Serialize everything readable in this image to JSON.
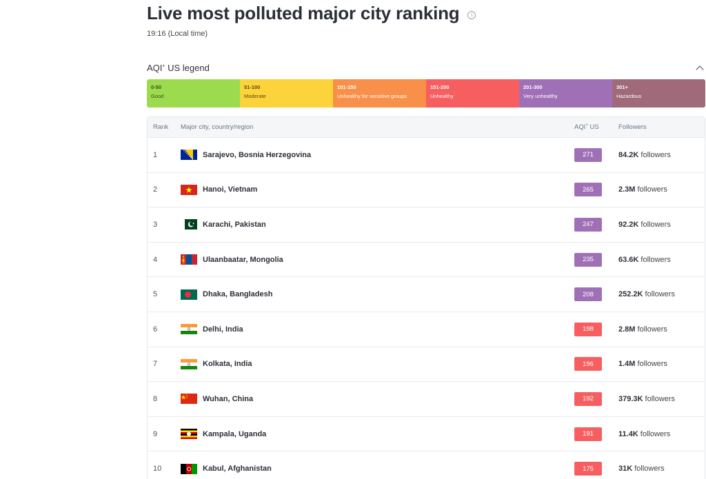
{
  "header": {
    "title": "Live most polluted major city ranking",
    "local_time": "19:16 (Local time)"
  },
  "legend": {
    "title_main": "AQI",
    "title_sup": "+",
    "title_rest": " US legend",
    "segments": [
      {
        "range": "0-50",
        "label": "Good",
        "color": "#9ddb4e"
      },
      {
        "range": "51-100",
        "label": "Moderate",
        "color": "#fcd33a"
      },
      {
        "range": "101-150",
        "label": "Unhealthy for sensitive groups",
        "color": "#f99049"
      },
      {
        "range": "151-200",
        "label": "Unhealthy",
        "color": "#f65e5f"
      },
      {
        "range": "201-300",
        "label": "Very unhealthy",
        "color": "#a070b6"
      },
      {
        "range": "301+",
        "label": "Hazardous",
        "color": "#a06a7b"
      }
    ]
  },
  "table": {
    "headers": {
      "rank": "Rank",
      "city": "Major city, country/region",
      "aqi_main": "AQI",
      "aqi_sup": "+",
      "aqi_rest": " US",
      "followers": "Followers"
    },
    "followers_suffix": " followers",
    "rows": [
      {
        "rank": "1",
        "city": "Sarajevo, Bosnia Herzegovina",
        "flag": "bosnia-flag-icon",
        "aqi": "271",
        "aqi_color": "#a070b6",
        "followers": "84.2K"
      },
      {
        "rank": "2",
        "city": "Hanoi, Vietnam",
        "flag": "vietnam-flag-icon",
        "aqi": "265",
        "aqi_color": "#a070b6",
        "followers": "2.3M"
      },
      {
        "rank": "3",
        "city": "Karachi, Pakistan",
        "flag": "pakistan-flag-icon",
        "aqi": "247",
        "aqi_color": "#a070b6",
        "followers": "92.2K"
      },
      {
        "rank": "4",
        "city": "Ulaanbaatar, Mongolia",
        "flag": "mongolia-flag-icon",
        "aqi": "235",
        "aqi_color": "#a070b6",
        "followers": "63.6K"
      },
      {
        "rank": "5",
        "city": "Dhaka, Bangladesh",
        "flag": "bangladesh-flag-icon",
        "aqi": "208",
        "aqi_color": "#a070b6",
        "followers": "252.2K"
      },
      {
        "rank": "6",
        "city": "Delhi, India",
        "flag": "india-flag-icon",
        "aqi": "198",
        "aqi_color": "#f65e5f",
        "followers": "2.8M"
      },
      {
        "rank": "7",
        "city": "Kolkata, India",
        "flag": "india-flag-icon",
        "aqi": "196",
        "aqi_color": "#f65e5f",
        "followers": "1.4M"
      },
      {
        "rank": "8",
        "city": "Wuhan, China",
        "flag": "china-flag-icon",
        "aqi": "192",
        "aqi_color": "#f65e5f",
        "followers": "379.3K"
      },
      {
        "rank": "9",
        "city": "Kampala, Uganda",
        "flag": "uganda-flag-icon",
        "aqi": "191",
        "aqi_color": "#f65e5f",
        "followers": "11.4K"
      },
      {
        "rank": "10",
        "city": "Kabul, Afghanistan",
        "flag": "afghanistan-flag-icon",
        "aqi": "175",
        "aqi_color": "#f65e5f",
        "followers": "31K"
      }
    ]
  }
}
